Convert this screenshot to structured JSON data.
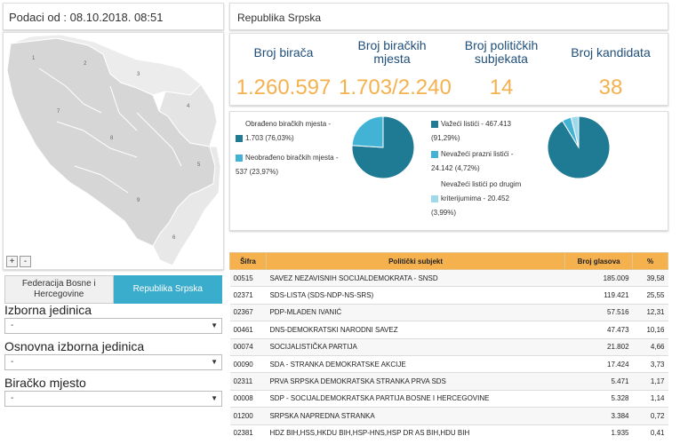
{
  "header": {
    "date_label": "Podaci od : 08.10.2018. 08:51"
  },
  "map": {
    "zoom_in": "+",
    "zoom_out": "-",
    "region_labels": [
      "1",
      "2",
      "3",
      "4",
      "5",
      "6",
      "7",
      "8",
      "9"
    ]
  },
  "tabs": {
    "federation": "Federacija Bosne i Hercegovine",
    "republika": "Republika Srpska"
  },
  "filters": {
    "izborna_jedinica": {
      "label": "Izborna jedinica",
      "value": "-"
    },
    "osnovna_izborna_jedinica": {
      "label": "Osnovna izborna jedinica",
      "value": "-"
    },
    "biracko_mjesto": {
      "label": "Biračko mjesto",
      "value": "-"
    }
  },
  "entity_title": "Republika Srpska",
  "stats": [
    {
      "label": "Broj birača",
      "value": "1.260.597"
    },
    {
      "label": "Broj biračkih mjesta",
      "value": "1.703/2.240"
    },
    {
      "label": "Broj političkih subjekata",
      "value": "14"
    },
    {
      "label": "Broj kandidata",
      "value": "38"
    }
  ],
  "pie1": {
    "legend": [
      {
        "text": "Obrađeno biračkih mjesta -",
        "value": "1.703 (76,03%)",
        "color": "#1f7a93",
        "fraction": 0.7603
      },
      {
        "text": "Neobrađeno biračkih mjesta -",
        "value": "537 (23,97%)",
        "color": "#42b3d5",
        "fraction": 0.2397
      }
    ]
  },
  "pie2": {
    "legend": [
      {
        "text": "Važeći listići - 467.413",
        "value": "(91,29%)",
        "color": "#1f7a93",
        "fraction": 0.9129
      },
      {
        "text": "Nevažeći prazni listići -",
        "value": "24.142 (4,72%)",
        "color": "#42b3d5",
        "fraction": 0.0472
      },
      {
        "text": "Nevažeći listići po drugim",
        "text2": "kriterijumima - 20.452",
        "value": "(3,99%)",
        "color": "#9fd8ea",
        "fraction": 0.0399
      }
    ]
  },
  "table": {
    "headers": [
      "Šifra",
      "Politički subjekt",
      "Broj glasova",
      "%"
    ],
    "rows": [
      {
        "code": "00515",
        "subject": "SAVEZ NEZAVISNIH SOCIJALDEMOKRATA - SNSD",
        "votes": "185.009",
        "pct": "39,58"
      },
      {
        "code": "02371",
        "subject": "SDS-LISTA (SDS-NDP-NS-SRS)",
        "votes": "119.421",
        "pct": "25,55"
      },
      {
        "code": "02367",
        "subject": "PDP-MLADEN IVANIĆ",
        "votes": "57.516",
        "pct": "12,31"
      },
      {
        "code": "00461",
        "subject": "DNS-DEMOKRATSKI NARODNI SAVEZ",
        "votes": "47.473",
        "pct": "10,16"
      },
      {
        "code": "00074",
        "subject": "SOCIJALISTIČKA PARTIJA",
        "votes": "21.802",
        "pct": "4,66"
      },
      {
        "code": "00090",
        "subject": "SDA - STRANKA DEMOKRATSKE AKCIJE",
        "votes": "17.424",
        "pct": "3,73"
      },
      {
        "code": "02311",
        "subject": "PRVA SRPSKA DEMOKRATSKA STRANKA PRVA SDS",
        "votes": "5.471",
        "pct": "1,17"
      },
      {
        "code": "00008",
        "subject": "SDP - SOCIJALDEMOKRATSKA PARTIJA BOSNE I HERCEGOVINE",
        "votes": "5.328",
        "pct": "1,14"
      },
      {
        "code": "01200",
        "subject": "SRPSKA NAPREDNA STRANKA",
        "votes": "3.384",
        "pct": "0,72"
      },
      {
        "code": "02381",
        "subject": "HDZ BIH,HSS,HKDU BIH,HSP-HNS,HSP DR AS BIH,HDU BIH",
        "votes": "1.935",
        "pct": "0,41"
      }
    ]
  }
}
